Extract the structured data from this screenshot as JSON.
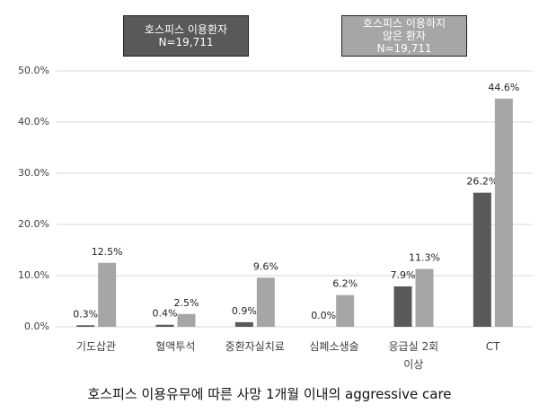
{
  "chart_data": {
    "type": "bar",
    "title": "호스피스 이용유무에 따른 사망 1개월 이내의 aggressive care",
    "categories": [
      "기도삽관",
      "혈액투석",
      "중환자실치료",
      "심폐소생술",
      "응급실  2회\n이상",
      "CT"
    ],
    "series": [
      {
        "name": "호스피스 이용환자\nN=19,711",
        "color": "#595959",
        "values": [
          0.3,
          0.4,
          0.9,
          0.0,
          7.9,
          26.2
        ],
        "value_labels": [
          "0.3%",
          "0.4%",
          "0.9%",
          "0.0%",
          "7.9%",
          "26.2%"
        ]
      },
      {
        "name": "호스피스 이용하지\n않은 환자\nN=19,711",
        "color": "#a6a6a6",
        "values": [
          12.5,
          2.5,
          9.6,
          6.2,
          11.3,
          44.6
        ],
        "value_labels": [
          "12.5%",
          "2.5%",
          "9.6%",
          "6.2%",
          "11.3%",
          "44.6%"
        ]
      }
    ],
    "ylim": [
      0,
      50
    ],
    "yticks": [
      {
        "value": 0,
        "label": "0.0%"
      },
      {
        "value": 10,
        "label": "10.0%"
      },
      {
        "value": 20,
        "label": "20.0%"
      },
      {
        "value": 30,
        "label": "30.0%"
      },
      {
        "value": 40,
        "label": "40.0%"
      },
      {
        "value": 50,
        "label": "50.0%"
      }
    ],
    "grid": true
  }
}
